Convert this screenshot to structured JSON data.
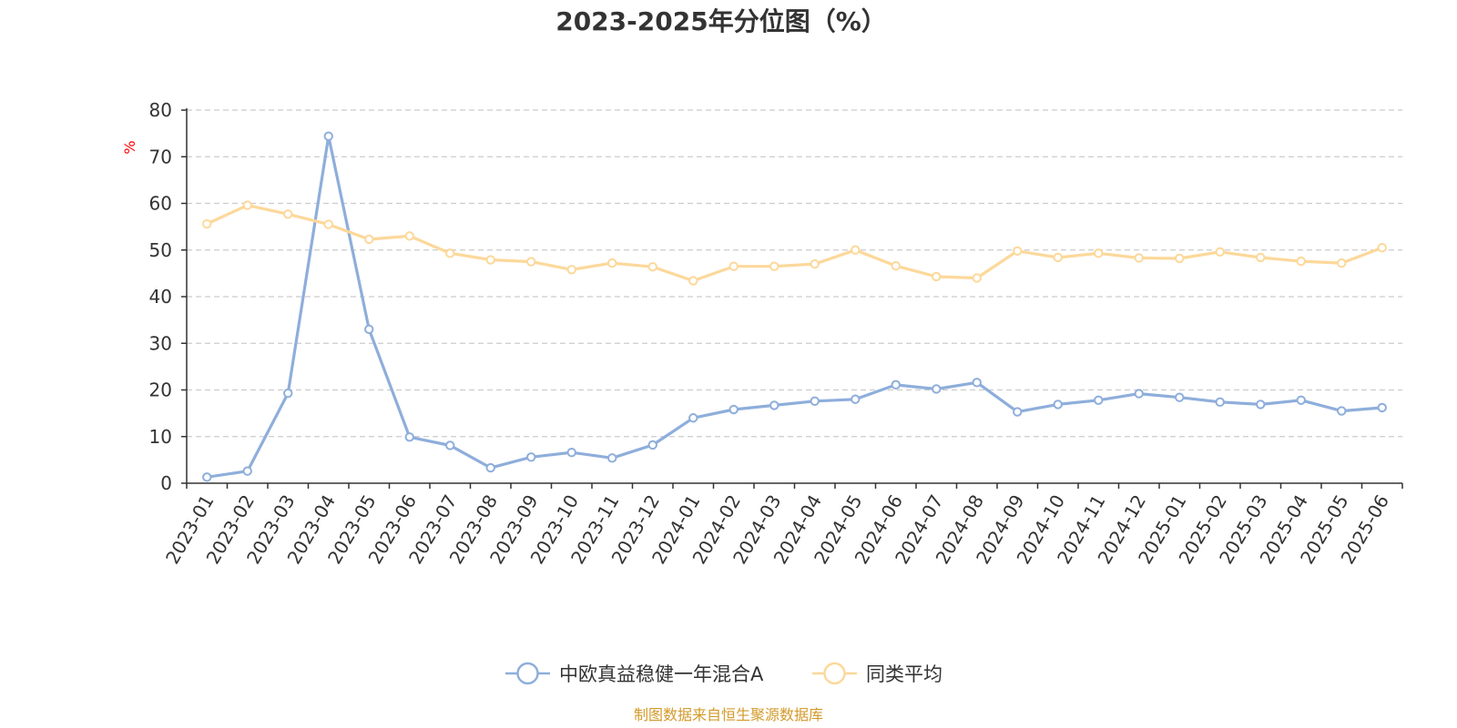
{
  "chart_data": {
    "type": "line",
    "title": "2023-2025年分位图（%）",
    "ylabel": "%",
    "xlabel": "",
    "ylim": [
      0,
      80
    ],
    "yticks": [
      0,
      10,
      20,
      30,
      40,
      50,
      60,
      70,
      80
    ],
    "grid": true,
    "legend_position": "bottom-center",
    "categories": [
      "2023-01",
      "2023-02",
      "2023-03",
      "2023-04",
      "2023-05",
      "2023-06",
      "2023-07",
      "2023-08",
      "2023-09",
      "2023-10",
      "2023-11",
      "2023-12",
      "2024-01",
      "2024-02",
      "2024-03",
      "2024-04",
      "2024-05",
      "2024-06",
      "2024-07",
      "2024-08",
      "2024-09",
      "2024-10",
      "2024-11",
      "2024-12",
      "2025-01",
      "2025-02",
      "2025-03",
      "2025-04",
      "2025-05",
      "2025-06"
    ],
    "series": [
      {
        "name": "中欧真益稳健一年混合A",
        "color": "#8eaedb",
        "values": [
          1.3,
          2.6,
          19.3,
          74.4,
          33.0,
          9.9,
          8.1,
          3.3,
          5.6,
          6.6,
          5.4,
          8.2,
          14.0,
          15.8,
          16.7,
          17.6,
          18.0,
          21.1,
          20.2,
          21.6,
          15.3,
          16.9,
          17.8,
          19.2,
          18.4,
          17.4,
          16.9,
          17.8,
          15.5,
          16.2
        ]
      },
      {
        "name": "同类平均",
        "color": "#fcd89a",
        "values": [
          55.6,
          59.6,
          57.7,
          55.5,
          52.3,
          53.0,
          49.3,
          47.9,
          47.5,
          45.8,
          47.2,
          46.4,
          43.4,
          46.5,
          46.5,
          47.0,
          50.0,
          46.6,
          44.3,
          44.0,
          49.8,
          48.4,
          49.3,
          48.3,
          48.2,
          49.6,
          48.4,
          47.6,
          47.2,
          50.5
        ]
      }
    ],
    "source": "制图数据来自恒生聚源数据库"
  },
  "colors": {
    "axis": "#333333",
    "grid": "#cccccc",
    "unit_label": "#ff0000",
    "source_text": "#d39a2a",
    "marker_fill": "#ffffff"
  }
}
